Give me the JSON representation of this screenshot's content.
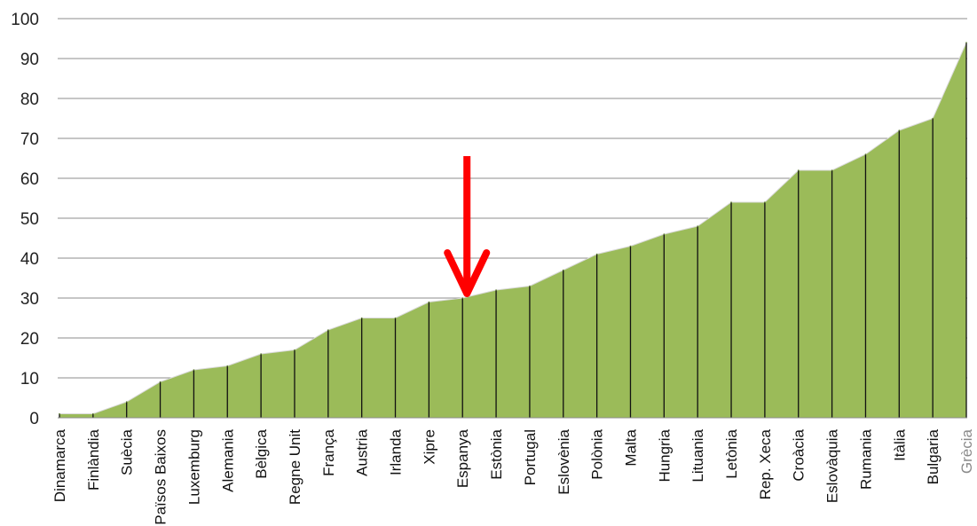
{
  "chart_data": {
    "type": "area",
    "title": "",
    "xlabel": "",
    "ylabel": "",
    "ylim": [
      0,
      100
    ],
    "y_ticks": [
      "0",
      "10",
      "20",
      "30",
      "40",
      "50",
      "60",
      "70",
      "80",
      "90",
      "100"
    ],
    "grid": true,
    "legend": "none",
    "fill_color": "#9bbb59",
    "categories": [
      "Dinamarca",
      "Finlàndia",
      "Suècia",
      "Països Baixos",
      "Luxemburg",
      "Alemania",
      "Bèlgica",
      "Regne Unit",
      "França",
      "Austria",
      "Irlanda",
      "Xipre",
      "Espanya",
      "Estònia",
      "Portugal",
      "Eslovènia",
      "Polònia",
      "Malta",
      "Hungria",
      "Lituania",
      "Letònia",
      "Rep. Xeca",
      "Croàcia",
      "Eslovàquia",
      "Rumania",
      "Itàlia",
      "Bulgaria",
      "Grècia"
    ],
    "series": [
      {
        "values": [
          1,
          1,
          4,
          9,
          12,
          13,
          16,
          17,
          22,
          25,
          25,
          29,
          30,
          32,
          33,
          37,
          41,
          43,
          46,
          48,
          54,
          54,
          62,
          62,
          66,
          72,
          75,
          94
        ]
      }
    ],
    "annotations": [
      {
        "type": "arrow",
        "color": "#ff0000",
        "points_to": "Espanya"
      }
    ]
  }
}
